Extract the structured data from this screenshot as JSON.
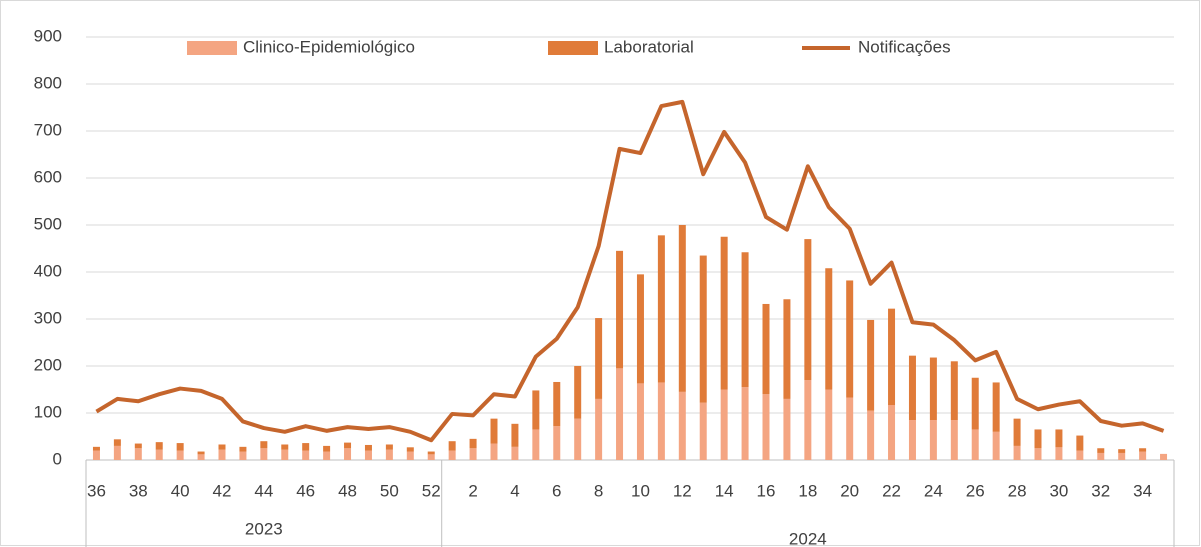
{
  "chart_data": {
    "type": "bar",
    "categories": [
      "36",
      null,
      "38",
      null,
      "40",
      null,
      "42",
      null,
      "44",
      null,
      "46",
      null,
      "48",
      null,
      "50",
      null,
      "52",
      null,
      "2",
      null,
      "4",
      null,
      "6",
      null,
      "8",
      null,
      "10",
      null,
      "12",
      null,
      "14",
      null,
      "16",
      null,
      "18",
      null,
      "20",
      null,
      "22",
      null,
      "24",
      null,
      "26",
      null,
      "28",
      null,
      "30",
      null,
      "32",
      null,
      "34",
      null
    ],
    "groups": [
      {
        "label": "2023",
        "count": 17
      },
      {
        "label": "2024",
        "count": 35
      }
    ],
    "series": [
      {
        "name": "Clinico-Epidemiológico",
        "color": "#f4a582",
        "stack": true,
        "values": [
          20,
          30,
          25,
          22,
          20,
          12,
          22,
          18,
          25,
          22,
          20,
          18,
          25,
          20,
          22,
          18,
          12,
          20,
          25,
          35,
          28,
          65,
          72,
          88,
          130,
          195,
          163,
          165,
          145,
          122,
          150,
          155,
          140,
          130,
          170,
          150,
          133,
          105,
          117,
          85,
          85,
          85,
          65,
          60,
          30,
          25,
          27,
          20,
          15,
          15,
          18,
          13
        ]
      },
      {
        "name": "Laboratorial",
        "color": "#e07b39",
        "stack": true,
        "values": [
          8,
          14,
          10,
          16,
          16,
          6,
          11,
          10,
          15,
          11,
          16,
          12,
          12,
          12,
          11,
          9,
          6,
          20,
          20,
          53,
          49,
          83,
          94,
          112,
          172,
          250,
          232,
          313,
          355,
          313,
          325,
          287,
          192,
          212,
          300,
          258,
          249,
          193,
          205,
          137,
          133,
          125,
          110,
          105,
          58,
          40,
          38,
          32,
          10,
          8,
          7,
          0
        ]
      },
      {
        "name": "Notificações",
        "color": "#c5652c",
        "kind": "line",
        "values": [
          103,
          130,
          125,
          140,
          152,
          147,
          130,
          82,
          68,
          60,
          72,
          62,
          70,
          66,
          70,
          60,
          42,
          98,
          95,
          140,
          135,
          220,
          258,
          325,
          455,
          662,
          653,
          753,
          762,
          608,
          698,
          633,
          517,
          490,
          625,
          538,
          492,
          375,
          420,
          293,
          288,
          255,
          212,
          230,
          130,
          108,
          118,
          125,
          83,
          73,
          78,
          62
        ]
      }
    ],
    "ylim": [
      0,
      900
    ],
    "yticks": [
      0,
      100,
      200,
      300,
      400,
      500,
      600,
      700,
      800,
      900
    ],
    "grid": true,
    "legend": "top"
  }
}
